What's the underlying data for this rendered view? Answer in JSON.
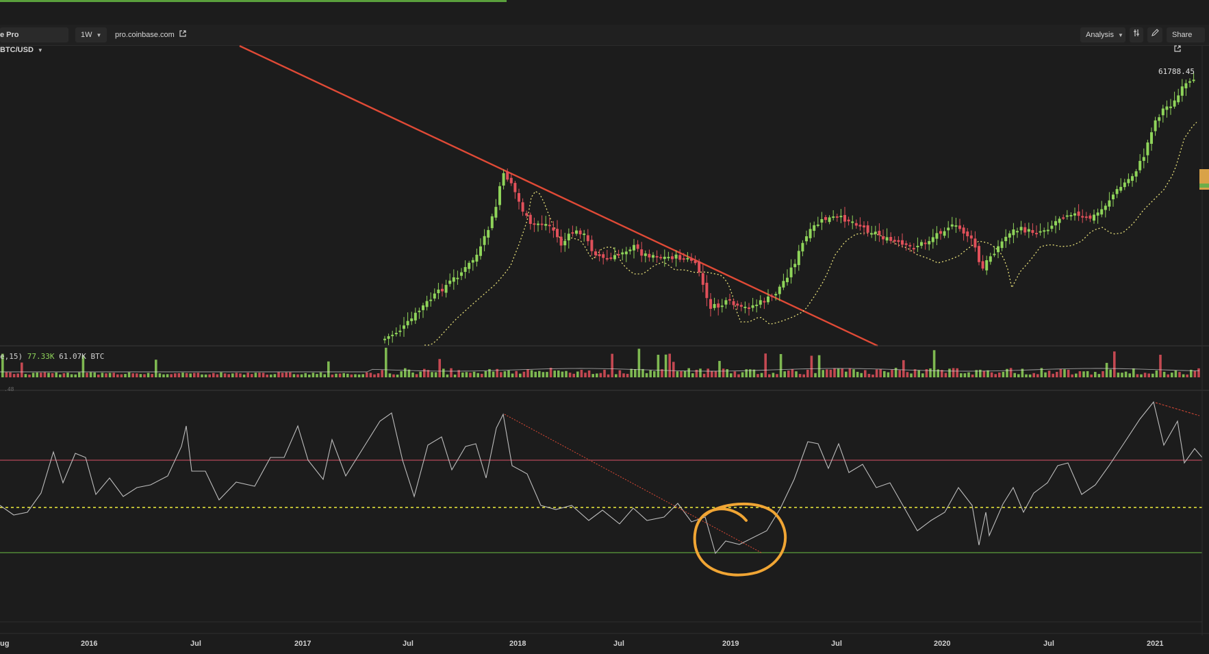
{
  "toolbar": {
    "symbol": "e Pro BTC/USD",
    "interval": "1W",
    "source_link": "pro.coinbase.com",
    "analysis_label": "Analysis",
    "share_label": "Share"
  },
  "colors": {
    "background": "#1c1c1c",
    "up_candle": "#8fd45a",
    "down_candle": "#e0505a",
    "trendline": "#e04a36",
    "ma_line": "#e8e07a",
    "rsi_line": "#bdbdbd",
    "rsi_upper": "#b4475a",
    "rsi_mid": "#f2f03c",
    "rsi_lower": "#5c9e3c",
    "highlight_circle": "#f0a534"
  },
  "price_label": "61788.45",
  "volume_legend": {
    "prefix": "e,15)",
    "value1": "77.33K",
    "value2": "61.07K BTC"
  },
  "rsi_scale_label": ".48",
  "chart_data": {
    "type": "candlestick",
    "timeframe": "1W",
    "pair": "BTC/USD",
    "x_ticks": [
      "ug",
      "2016",
      "Jul",
      "2017",
      "Jul",
      "2018",
      "Jul",
      "2019",
      "Jul",
      "2020",
      "Jul",
      "2021"
    ],
    "last_price": 61788.45,
    "volume_values": [
      "77.33K",
      "61.07K BTC"
    ],
    "annotations": [
      "Descending red trendline drawn from the Dec 2017 price high through early 2019",
      "Dotted red trendline on RSI pane from the Dec 2017 RSI peak",
      "Orange hand-drawn circle around the RSI low near early 2019",
      "Short dotted red line on RSI pane at the 2021 peak (divergence)"
    ]
  },
  "icons": {
    "external_link": "external-link-icon",
    "indicators": "indicators-icon",
    "draw": "pencil-icon",
    "share": "share-icon"
  }
}
